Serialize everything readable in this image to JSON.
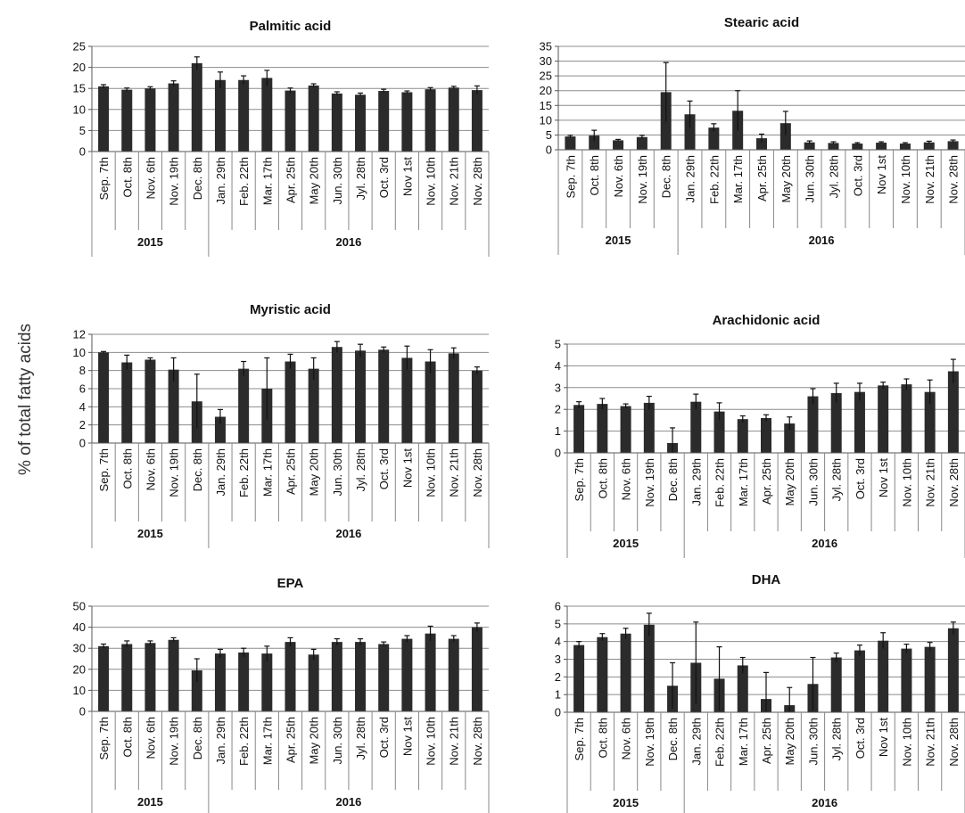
{
  "figure": {
    "ylabel": "% of total fatty acids",
    "categories": [
      "Sep. 7th",
      "Oct. 8th",
      "Nov. 6th",
      "Nov. 19th",
      "Dec. 8th",
      "Jan. 29th",
      "Feb. 22th",
      "Mar. 17th",
      "Apr. 25th",
      "May 20th",
      "Jun. 30th",
      "Jyl. 28th",
      "Oct. 3rd",
      "Nov 1st",
      "Nov. 10th",
      "Nov. 21th",
      "Nov. 28th"
    ],
    "years": [
      {
        "label": "2015",
        "count": 5
      },
      {
        "label": "2016",
        "count": 12
      }
    ]
  },
  "chart_data": [
    {
      "type": "bar",
      "title": "Palmitic acid",
      "ylim": [
        0,
        25
      ],
      "yticks": [
        0,
        5,
        10,
        15,
        20,
        25
      ],
      "values": [
        15.5,
        14.7,
        15.0,
        16.2,
        21.0,
        17.0,
        17.0,
        17.5,
        14.5,
        15.7,
        13.8,
        13.5,
        14.4,
        14.1,
        14.8,
        15.2,
        14.6
      ],
      "errors": [
        0.4,
        0.4,
        0.4,
        0.6,
        1.5,
        1.9,
        1.0,
        1.8,
        0.6,
        0.4,
        0.4,
        0.4,
        0.4,
        0.3,
        0.4,
        0.3,
        1.0
      ]
    },
    {
      "type": "bar",
      "title": "Stearic acid",
      "ylim": [
        0,
        35
      ],
      "yticks": [
        0,
        5,
        10,
        15,
        20,
        25,
        30,
        35
      ],
      "values": [
        4.5,
        4.8,
        3.2,
        4.3,
        19.5,
        12.0,
        7.5,
        13.2,
        3.9,
        9.0,
        2.5,
        2.3,
        2.1,
        2.4,
        2.1,
        2.5,
        2.9
      ],
      "errors": [
        0.4,
        1.8,
        0.3,
        0.6,
        10.0,
        4.5,
        1.3,
        6.8,
        1.4,
        4.0,
        0.5,
        0.4,
        0.3,
        0.3,
        0.3,
        0.4,
        0.4
      ]
    },
    {
      "type": "bar",
      "title": "Myristic acid",
      "ylim": [
        0,
        12
      ],
      "yticks": [
        0,
        2,
        4,
        6,
        8,
        10,
        12
      ],
      "values": [
        10.0,
        8.9,
        9.2,
        8.1,
        4.6,
        2.9,
        8.2,
        6.0,
        9.0,
        8.2,
        10.6,
        10.2,
        10.3,
        9.4,
        9.0,
        9.9,
        8.0
      ],
      "errors": [
        0.1,
        0.8,
        0.2,
        1.3,
        3.0,
        0.8,
        0.8,
        3.4,
        0.8,
        1.2,
        0.6,
        0.7,
        0.3,
        1.3,
        1.3,
        0.6,
        0.4
      ]
    },
    {
      "type": "bar",
      "title": "Arachidonic acid",
      "ylim": [
        0,
        5
      ],
      "yticks": [
        0,
        1,
        2,
        3,
        4,
        5
      ],
      "values": [
        2.2,
        2.25,
        2.15,
        2.3,
        0.45,
        2.35,
        1.9,
        1.55,
        1.6,
        1.35,
        2.6,
        2.75,
        2.8,
        3.1,
        3.15,
        2.8,
        3.75
      ],
      "errors": [
        0.15,
        0.25,
        0.1,
        0.3,
        0.7,
        0.35,
        0.4,
        0.15,
        0.15,
        0.3,
        0.35,
        0.45,
        0.4,
        0.15,
        0.25,
        0.55,
        0.55
      ]
    },
    {
      "type": "bar",
      "title": "EPA",
      "ylim": [
        0,
        50
      ],
      "yticks": [
        0,
        10,
        20,
        30,
        40,
        50
      ],
      "values": [
        31,
        32,
        32.5,
        34,
        19.5,
        27.5,
        28,
        27.5,
        33,
        27,
        33,
        33,
        32,
        34.5,
        37,
        34.5,
        40
      ],
      "errors": [
        1,
        1.5,
        1,
        1,
        5.5,
        2,
        2,
        3.5,
        2,
        2.5,
        1.5,
        1.5,
        1,
        1.5,
        3.5,
        1.5,
        2
      ]
    },
    {
      "type": "bar",
      "title": "DHA",
      "ylim": [
        0,
        6
      ],
      "yticks": [
        0,
        1,
        2,
        3,
        4,
        5,
        6
      ],
      "values": [
        3.8,
        4.25,
        4.45,
        4.95,
        1.5,
        2.8,
        1.9,
        2.65,
        0.75,
        0.4,
        1.6,
        3.1,
        3.5,
        4.05,
        3.6,
        3.7,
        4.75
      ],
      "errors": [
        0.2,
        0.2,
        0.3,
        0.65,
        1.3,
        2.3,
        1.8,
        0.45,
        1.5,
        1.0,
        1.5,
        0.25,
        0.3,
        0.45,
        0.25,
        0.25,
        0.35
      ]
    }
  ]
}
